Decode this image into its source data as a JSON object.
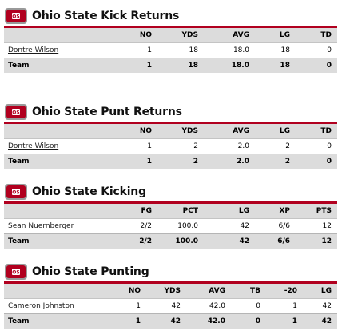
{
  "colors": {
    "accent": "#b1001f",
    "header_bg": "#dcdcdc"
  },
  "logo_icon": "ohio-state-block-o-logo",
  "sections": [
    {
      "title": "Ohio State Kick Returns",
      "columns": [
        "",
        "NO",
        "YDS",
        "AVG",
        "LG",
        "TD"
      ],
      "player": [
        "Dontre Wilson",
        "1",
        "18",
        "18.0",
        "18",
        "0"
      ],
      "team": [
        "Team",
        "1",
        "18",
        "18.0",
        "18",
        "0"
      ]
    },
    {
      "title": "Ohio State Punt Returns",
      "columns": [
        "",
        "NO",
        "YDS",
        "AVG",
        "LG",
        "TD"
      ],
      "player": [
        "Dontre Wilson",
        "1",
        "2",
        "2.0",
        "2",
        "0"
      ],
      "team": [
        "Team",
        "1",
        "2",
        "2.0",
        "2",
        "0"
      ]
    },
    {
      "title": "Ohio State Kicking",
      "columns": [
        "",
        "FG",
        "PCT",
        "LG",
        "XP",
        "PTS"
      ],
      "player": [
        "Sean Nuernberger",
        "2/2",
        "100.0",
        "42",
        "6/6",
        "12"
      ],
      "team": [
        "Team",
        "2/2",
        "100.0",
        "42",
        "6/6",
        "12"
      ]
    },
    {
      "title": "Ohio State Punting",
      "columns": [
        "",
        "NO",
        "YDS",
        "AVG",
        "TB",
        "-20",
        "LG"
      ],
      "player": [
        "Cameron Johnston",
        "1",
        "42",
        "42.0",
        "0",
        "1",
        "42"
      ],
      "team": [
        "Team",
        "1",
        "42",
        "42.0",
        "0",
        "1",
        "42"
      ]
    }
  ]
}
